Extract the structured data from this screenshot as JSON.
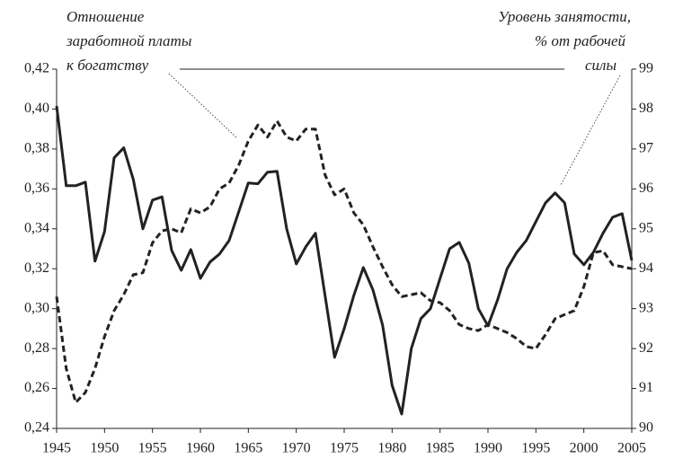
{
  "chart_data": {
    "type": "line",
    "annotations": [
      {
        "lines": [
          "Отношение",
          "заработной платы",
          "к богатству"
        ]
      },
      {
        "lines": [
          "Уровень занятости,",
          "% от рабочей",
          "силы"
        ]
      }
    ],
    "x": [
      1945,
      1946,
      1947,
      1948,
      1949,
      1950,
      1951,
      1952,
      1953,
      1954,
      1955,
      1956,
      1957,
      1958,
      1959,
      1960,
      1961,
      1962,
      1963,
      1964,
      1965,
      1966,
      1967,
      1968,
      1969,
      1970,
      1971,
      1972,
      1973,
      1974,
      1975,
      1976,
      1977,
      1978,
      1979,
      1980,
      1981,
      1982,
      1983,
      1984,
      1985,
      1986,
      1987,
      1988,
      1989,
      1990,
      1991,
      1992,
      1993,
      1994,
      1995,
      1996,
      1997,
      1998,
      1999,
      2000,
      2001,
      2002,
      2003,
      2004,
      2005
    ],
    "xlim": [
      1945,
      2005
    ],
    "xticks": [
      1945,
      1950,
      1955,
      1960,
      1965,
      1970,
      1975,
      1980,
      1985,
      1990,
      1995,
      2000,
      2005
    ],
    "ylim": [
      0.24,
      0.42
    ],
    "yticks": [
      {
        "value": 0.24,
        "label": "0,24"
      },
      {
        "value": 0.26,
        "label": "0,26"
      },
      {
        "value": 0.28,
        "label": "0,28"
      },
      {
        "value": 0.3,
        "label": "0,30"
      },
      {
        "value": 0.32,
        "label": "0,32"
      },
      {
        "value": 0.34,
        "label": "0,34"
      },
      {
        "value": 0.36,
        "label": "0,36"
      },
      {
        "value": 0.38,
        "label": "0,38"
      },
      {
        "value": 0.4,
        "label": "0,40"
      },
      {
        "value": 0.42,
        "label": "0,42"
      }
    ],
    "y2lim": [
      90,
      99
    ],
    "y2ticks": [
      90,
      91,
      92,
      93,
      94,
      95,
      96,
      97,
      98,
      99
    ],
    "series": [
      {
        "color": "#222222",
        "style": "dashed",
        "axis": "y",
        "values": [
          0.306,
          0.27,
          0.253,
          0.258,
          0.27,
          0.286,
          0.299,
          0.307,
          0.317,
          0.318,
          0.333,
          0.339,
          0.34,
          0.338,
          0.35,
          0.348,
          0.351,
          0.36,
          0.363,
          0.372,
          0.384,
          0.392,
          0.386,
          0.394,
          0.386,
          0.384,
          0.39,
          0.39,
          0.367,
          0.357,
          0.36,
          0.348,
          0.342,
          0.331,
          0.321,
          0.312,
          0.306,
          0.307,
          0.308,
          0.304,
          0.303,
          0.299,
          0.292,
          0.29,
          0.289,
          0.292,
          0.29,
          0.288,
          0.285,
          0.281,
          0.28,
          0.287,
          0.295,
          0.297,
          0.299,
          0.311,
          0.328,
          0.329,
          0.322,
          0.321,
          0.32
        ]
      },
      {
        "color": "#222222",
        "style": "solid",
        "axis": "y2",
        "values": [
          98.08,
          96.08,
          96.08,
          96.17,
          94.19,
          94.93,
          96.78,
          97.03,
          96.24,
          95.0,
          95.72,
          95.8,
          94.46,
          93.96,
          94.48,
          93.76,
          94.17,
          94.37,
          94.71,
          95.43,
          96.15,
          96.13,
          96.42,
          96.44,
          95.0,
          94.12,
          94.55,
          94.89,
          93.33,
          91.78,
          92.5,
          93.33,
          94.03,
          93.47,
          92.59,
          91.08,
          90.36,
          92.0,
          92.75,
          93.0,
          93.76,
          94.5,
          94.66,
          94.14,
          93.0,
          92.57,
          93.22,
          94.0,
          94.41,
          94.71,
          95.18,
          95.65,
          95.9,
          95.65,
          94.37,
          94.1,
          94.41,
          94.89,
          95.29,
          95.38,
          94.21
        ]
      }
    ]
  }
}
